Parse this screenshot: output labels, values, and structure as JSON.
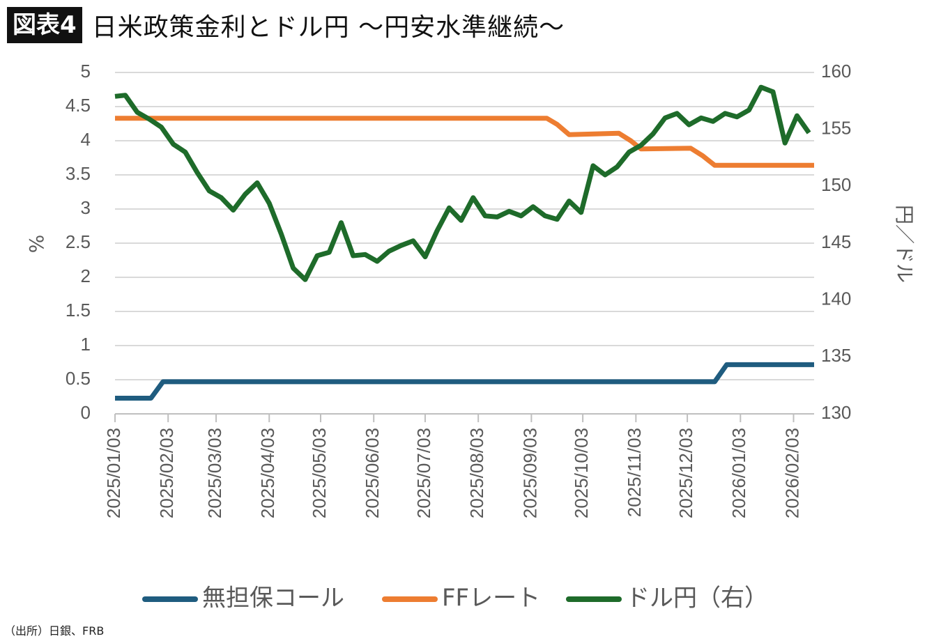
{
  "header": {
    "badge": "図表4",
    "title": "日米政策金利とドル円 〜円安水準継続〜"
  },
  "source": "（出所）日銀、FRB",
  "chart_data": {
    "type": "line",
    "ylabel_left": "%",
    "ylabel_right": "円／ドル",
    "ylim_left": [
      0,
      5
    ],
    "ylim_right": [
      130,
      160
    ],
    "yticks_left": [
      "0",
      "0.5",
      "1",
      "1.5",
      "2",
      "2.5",
      "3",
      "3.5",
      "4",
      "4.5",
      "5"
    ],
    "yticks_right": [
      "130",
      "135",
      "140",
      "145",
      "150",
      "155",
      "160"
    ],
    "xticks": [
      "2025/01/03",
      "2025/02/03",
      "2025/03/03",
      "2025/04/03",
      "2025/05/03",
      "2025/06/03",
      "2025/07/03",
      "2025/08/03",
      "2025/09/03",
      "2025/10/03",
      "2025/11/03",
      "2025/12/03",
      "2026/01/03",
      "2026/02/03"
    ],
    "xdomain": [
      "2025-01-03",
      "2026-02-15"
    ],
    "grid": true,
    "legend_position": "bottom",
    "series": [
      {
        "name": "無担保コール",
        "axis": "left",
        "color": "#1F5C7F",
        "points": [
          [
            "2025-01-03",
            0.23
          ],
          [
            "2025-01-24",
            0.23
          ],
          [
            "2025-01-31",
            0.47
          ],
          [
            "2025-02-28",
            0.47
          ],
          [
            "2025-03-07",
            0.47
          ],
          [
            "2025-03-31",
            0.47
          ],
          [
            "2025-05-31",
            0.47
          ],
          [
            "2025-08-15",
            0.47
          ],
          [
            "2025-08-31",
            0.47
          ],
          [
            "2025-10-31",
            0.47
          ],
          [
            "2025-12-19",
            0.47
          ],
          [
            "2025-12-26",
            0.72
          ],
          [
            "2026-01-31",
            0.72
          ],
          [
            "2026-02-15",
            0.72
          ]
        ]
      },
      {
        "name": "FFレート",
        "axis": "left",
        "color": "#ED7D31",
        "points": [
          [
            "2025-01-03",
            4.33
          ],
          [
            "2025-09-12",
            4.33
          ],
          [
            "2025-09-18",
            4.24
          ],
          [
            "2025-09-25",
            4.09
          ],
          [
            "2025-10-24",
            4.11
          ],
          [
            "2025-10-31",
            4.0
          ],
          [
            "2025-11-06",
            3.88
          ],
          [
            "2025-12-05",
            3.89
          ],
          [
            "2025-12-12",
            3.78
          ],
          [
            "2025-12-19",
            3.64
          ],
          [
            "2026-02-15",
            3.64
          ]
        ]
      },
      {
        "name": "ドル円（右）",
        "axis": "right",
        "color": "#1E6B2A",
        "points": [
          [
            "2025-01-03",
            157.9
          ],
          [
            "2025-01-09",
            158.0
          ],
          [
            "2025-01-16",
            156.5
          ],
          [
            "2025-01-23",
            155.9
          ],
          [
            "2025-01-30",
            155.2
          ],
          [
            "2025-02-06",
            153.7
          ],
          [
            "2025-02-13",
            153.0
          ],
          [
            "2025-02-20",
            151.2
          ],
          [
            "2025-02-27",
            149.6
          ],
          [
            "2025-03-06",
            149.0
          ],
          [
            "2025-03-13",
            147.9
          ],
          [
            "2025-03-20",
            149.3
          ],
          [
            "2025-03-27",
            150.3
          ],
          [
            "2025-04-03",
            148.5
          ],
          [
            "2025-04-10",
            145.8
          ],
          [
            "2025-04-17",
            142.8
          ],
          [
            "2025-04-24",
            141.8
          ],
          [
            "2025-05-01",
            143.9
          ],
          [
            "2025-05-08",
            144.2
          ],
          [
            "2025-05-15",
            146.8
          ],
          [
            "2025-05-22",
            143.9
          ],
          [
            "2025-05-29",
            144.0
          ],
          [
            "2025-06-05",
            143.4
          ],
          [
            "2025-06-12",
            144.3
          ],
          [
            "2025-06-19",
            144.8
          ],
          [
            "2025-06-26",
            145.2
          ],
          [
            "2025-07-03",
            143.8
          ],
          [
            "2025-07-10",
            146.1
          ],
          [
            "2025-07-17",
            148.1
          ],
          [
            "2025-07-24",
            147.0
          ],
          [
            "2025-07-31",
            149.0
          ],
          [
            "2025-08-07",
            147.4
          ],
          [
            "2025-08-14",
            147.3
          ],
          [
            "2025-08-21",
            147.8
          ],
          [
            "2025-08-28",
            147.4
          ],
          [
            "2025-09-04",
            148.2
          ],
          [
            "2025-09-11",
            147.4
          ],
          [
            "2025-09-18",
            147.1
          ],
          [
            "2025-09-25",
            148.7
          ],
          [
            "2025-10-02",
            147.7
          ],
          [
            "2025-10-09",
            151.8
          ],
          [
            "2025-10-16",
            151.0
          ],
          [
            "2025-10-23",
            151.7
          ],
          [
            "2025-10-30",
            153.0
          ],
          [
            "2025-11-06",
            153.6
          ],
          [
            "2025-11-13",
            154.6
          ],
          [
            "2025-11-20",
            156.0
          ],
          [
            "2025-11-27",
            156.4
          ],
          [
            "2025-12-04",
            155.4
          ],
          [
            "2025-12-11",
            156.0
          ],
          [
            "2025-12-18",
            155.7
          ],
          [
            "2025-12-25",
            156.4
          ],
          [
            "2026-01-01",
            156.1
          ],
          [
            "2026-01-08",
            156.7
          ],
          [
            "2026-01-15",
            158.7
          ],
          [
            "2026-01-22",
            158.3
          ],
          [
            "2026-01-29",
            153.8
          ],
          [
            "2026-02-05",
            156.2
          ],
          [
            "2026-02-12",
            154.7
          ]
        ]
      }
    ]
  }
}
